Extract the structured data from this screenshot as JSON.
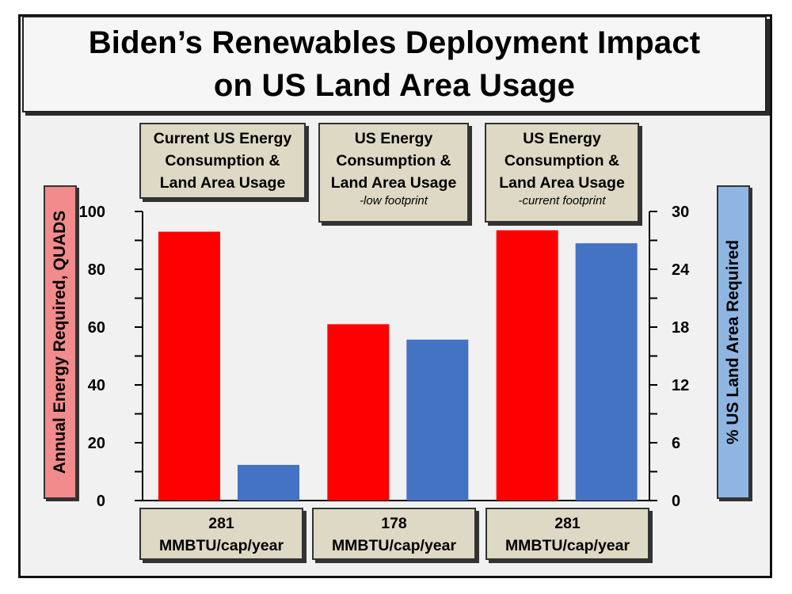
{
  "title": {
    "line1": "Biden’s Renewables Deployment Impact",
    "line2": "on US Land Area Usage"
  },
  "groups": [
    {
      "header": [
        "Current US Energy",
        "Consumption &",
        "Land Area Usage"
      ],
      "subheader": "",
      "footer": [
        "281",
        "MMBTU/cap/year"
      ]
    },
    {
      "header": [
        "US Energy",
        "Consumption &",
        "Land Area Usage"
      ],
      "subheader": "-low footprint",
      "footer": [
        "178",
        "MMBTU/cap/year"
      ]
    },
    {
      "header": [
        "US Energy",
        "Consumption &",
        "Land Area Usage"
      ],
      "subheader": "-current footprint",
      "footer": [
        "281",
        "MMBTU/cap/year"
      ]
    }
  ],
  "colors": {
    "energy": "#ff0000",
    "land": "#4472c4",
    "left_label_bg": "#f28b8b",
    "right_label_bg": "#8fb6e3"
  },
  "chart_data": {
    "type": "bar",
    "title": "Biden’s Renewables Deployment Impact on US Land Area Usage",
    "ylabel": "Annual Energy Required, QUADS",
    "y2label": "% US Land Area Required",
    "ylim": [
      0,
      100
    ],
    "y2lim": [
      0,
      30
    ],
    "yticks": [
      "0",
      "20",
      "40",
      "60",
      "80",
      "100"
    ],
    "y2ticks": [
      "0",
      "6",
      "12",
      "18",
      "24",
      "30"
    ],
    "groups": [
      "281 MMBTU/cap/year",
      "178 MMBTU/cap/year",
      "281 MMBTU/cap/year"
    ],
    "series": [
      {
        "name": "Annual Energy Required, QUADS",
        "axis": "left",
        "color": "#ff0000",
        "values": [
          93,
          61,
          93.5
        ]
      },
      {
        "name": "% US Land Area Required",
        "axis": "right",
        "color": "#4472c4",
        "values": [
          3.7,
          16.7,
          26.7
        ]
      }
    ],
    "grid": false
  }
}
